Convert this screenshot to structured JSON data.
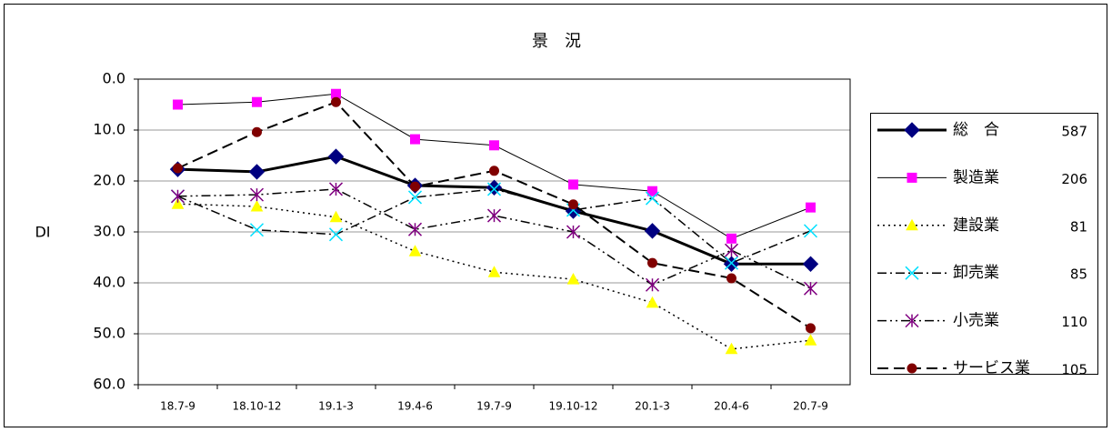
{
  "chart_data": {
    "type": "line",
    "title": "景　況",
    "y_label": "DI",
    "categories": [
      "18.7-9",
      "18.10-12",
      "19.1-3",
      "19.4-6",
      "19.7-9",
      "19.10-12",
      "20.1-3",
      "20.4-6",
      "20.7-9"
    ],
    "ylim": [
      0,
      60
    ],
    "y_inverted": true,
    "grid": true,
    "legend": "right",
    "yticks": [
      {
        "value": 0,
        "label": "0.0"
      },
      {
        "value": 10,
        "label": "10.0"
      },
      {
        "value": 20,
        "label": "20.0"
      },
      {
        "value": 30,
        "label": "30.0"
      },
      {
        "value": 40,
        "label": "40.0"
      },
      {
        "value": 50,
        "label": "50.0"
      },
      {
        "value": 60,
        "label": "60.0"
      }
    ],
    "series": [
      {
        "name": "総　合",
        "count": 587,
        "color": "#000080",
        "line_color": "#000000",
        "width": 3,
        "dash": "",
        "marker": "diamond",
        "values": [
          17.7,
          18.2,
          15.2,
          20.9,
          21.3,
          25.9,
          29.8,
          36.3,
          36.3
        ]
      },
      {
        "name": "製造業",
        "count": 206,
        "color": "#ff00ff",
        "line_color": "#000000",
        "width": 1,
        "dash": "",
        "marker": "square",
        "values": [
          5.0,
          4.5,
          2.9,
          11.8,
          13.0,
          20.7,
          22.0,
          31.3,
          25.2
        ]
      },
      {
        "name": "建設業",
        "count": 81,
        "color": "#ffff00",
        "line_color": "#000000",
        "width": 1.5,
        "dash": "2 4",
        "marker": "triangle",
        "values": [
          24.5,
          25.0,
          27.1,
          33.8,
          37.9,
          39.3,
          43.9,
          53.0,
          51.3
        ]
      },
      {
        "name": "卸売業",
        "count": 85,
        "color": "#00e0ff",
        "line_color": "#000000",
        "width": 1.5,
        "dash": "10 4 2 4",
        "marker": "x",
        "values": [
          23.0,
          29.6,
          30.5,
          23.2,
          21.6,
          25.7,
          23.4,
          36.1,
          29.8
        ]
      },
      {
        "name": "小売業",
        "count": 110,
        "color": "#800080",
        "line_color": "#000000",
        "width": 1.5,
        "dash": "10 4 2 4 2 4",
        "marker": "asterisk",
        "values": [
          23.0,
          22.7,
          21.6,
          29.5,
          26.8,
          30.0,
          40.4,
          33.6,
          41.1
        ]
      },
      {
        "name": "サービス業",
        "count": 105,
        "color": "#800000",
        "line_color": "#000000",
        "width": 2,
        "dash": "12 6",
        "marker": "circle",
        "values": [
          17.5,
          10.4,
          4.5,
          21.1,
          18.0,
          24.6,
          36.1,
          39.1,
          48.9
        ]
      }
    ]
  }
}
